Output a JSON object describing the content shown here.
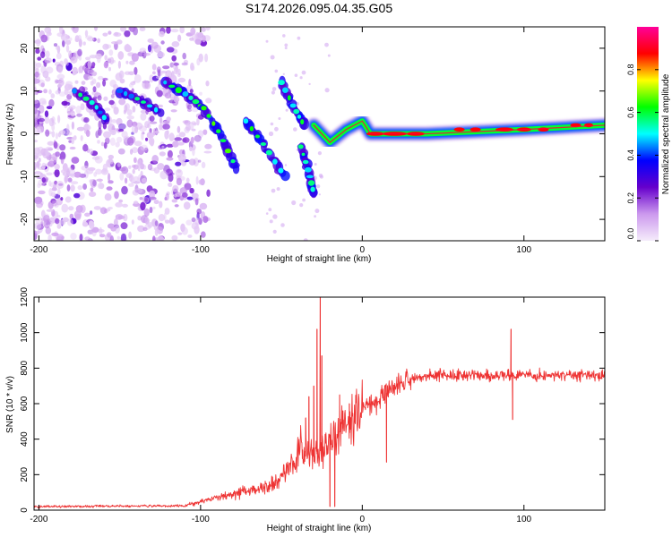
{
  "figure": {
    "title": "S174.2026.095.04.35.G05"
  },
  "chart_data": [
    {
      "type": "heatmap",
      "name": "spectrogram",
      "xlabel": "Height of straight line (km)",
      "ylabel": "Frequency (Hz)",
      "xlim": [
        -203,
        150
      ],
      "ylim": [
        -25,
        25
      ],
      "xticks": [
        -200,
        -100,
        0,
        100
      ],
      "yticks": [
        -20,
        -10,
        0,
        10,
        20
      ],
      "colorbar": {
        "label": "Normalized spectral amplitude",
        "range": [
          0,
          1
        ],
        "ticks": [
          0.0,
          0.2,
          0.4,
          0.6,
          0.8
        ],
        "tick_labels": [
          "0.0",
          "0.2",
          "0.4",
          "0.6",
          "0.8"
        ],
        "colors": [
          "#f5ecfb",
          "#cc99ee",
          "#6600cc",
          "#0000ff",
          "#00ffff",
          "#00ff00",
          "#ffff00",
          "#ff0000",
          "#ff0099"
        ]
      },
      "features": [
        {
          "name": "noise-scatter",
          "x_range": [
            -203,
            -95
          ],
          "y_range": [
            -25,
            25
          ],
          "amplitude": [
            0.05,
            0.2
          ]
        },
        {
          "name": "streak-1",
          "points": [
            [
              -178,
              10
            ],
            [
              -166,
              7
            ],
            [
              -158,
              3
            ]
          ],
          "amplitude": 0.3
        },
        {
          "name": "streak-2",
          "points": [
            [
              -150,
              10
            ],
            [
              -138,
              8
            ],
            [
              -125,
              5
            ]
          ],
          "amplitude": 0.3
        },
        {
          "name": "streak-3",
          "points": [
            [
              -122,
              12
            ],
            [
              -108,
              9
            ],
            [
              -98,
              6
            ]
          ],
          "amplitude": 0.35
        },
        {
          "name": "streak-4",
          "points": [
            [
              -98,
              6
            ],
            [
              -88,
              0
            ],
            [
              -78,
              -8
            ]
          ],
          "amplitude": 0.4
        },
        {
          "name": "streak-5",
          "points": [
            [
              -72,
              3
            ],
            [
              -60,
              -3
            ],
            [
              -48,
              -10
            ]
          ],
          "amplitude": 0.35
        },
        {
          "name": "streak-6",
          "points": [
            [
              -50,
              12
            ],
            [
              -42,
              6
            ],
            [
              -36,
              2
            ]
          ],
          "amplitude": 0.35
        },
        {
          "name": "streak-7",
          "points": [
            [
              -38,
              -3
            ],
            [
              -33,
              -9
            ],
            [
              -30,
              -14
            ]
          ],
          "amplitude": 0.35
        },
        {
          "name": "carrier",
          "points": [
            [
              -30,
              2
            ],
            [
              -20,
              -2
            ],
            [
              -10,
              1
            ],
            [
              0,
              3
            ],
            [
              5,
              0
            ],
            [
              40,
              0
            ],
            [
              100,
              1
            ],
            [
              150,
              2
            ]
          ],
          "amplitude": 0.85
        }
      ]
    },
    {
      "type": "line",
      "name": "snr",
      "xlabel": "Height of straight line (km)",
      "ylabel": "SNR (10 * v/v)",
      "xlim": [
        -203,
        150
      ],
      "ylim": [
        0,
        1200
      ],
      "xticks": [
        -200,
        -100,
        0,
        100
      ],
      "yticks": [
        0,
        200,
        400,
        600,
        800,
        1000,
        1200
      ],
      "color": "#ee3333",
      "envelope": [
        {
          "x": -203,
          "y": 20
        },
        {
          "x": -110,
          "y": 25
        },
        {
          "x": -90,
          "y": 70
        },
        {
          "x": -75,
          "y": 100
        },
        {
          "x": -55,
          "y": 140
        },
        {
          "x": -45,
          "y": 230
        },
        {
          "x": -38,
          "y": 350
        },
        {
          "x": -30,
          "y": 300
        },
        {
          "x": -20,
          "y": 380
        },
        {
          "x": -10,
          "y": 480
        },
        {
          "x": 0,
          "y": 560
        },
        {
          "x": 10,
          "y": 620
        },
        {
          "x": 20,
          "y": 700
        },
        {
          "x": 30,
          "y": 740
        },
        {
          "x": 45,
          "y": 760
        },
        {
          "x": 80,
          "y": 760
        },
        {
          "x": 150,
          "y": 760
        }
      ],
      "spikes": [
        {
          "x": -26,
          "y": 1200
        },
        {
          "x": -28,
          "y": 1020
        },
        {
          "x": -25,
          "y": 870
        },
        {
          "x": -30,
          "y": 700
        },
        {
          "x": -33,
          "y": 640
        },
        {
          "x": -35,
          "y": 520
        },
        {
          "x": -20,
          "y": 20
        },
        {
          "x": -17,
          "y": 20
        },
        {
          "x": -14,
          "y": 650
        },
        {
          "x": -12,
          "y": 560
        },
        {
          "x": -8,
          "y": 600
        },
        {
          "x": 15,
          "y": 270
        },
        {
          "x": 92,
          "y": 1020
        },
        {
          "x": 93,
          "y": 510
        }
      ]
    }
  ]
}
